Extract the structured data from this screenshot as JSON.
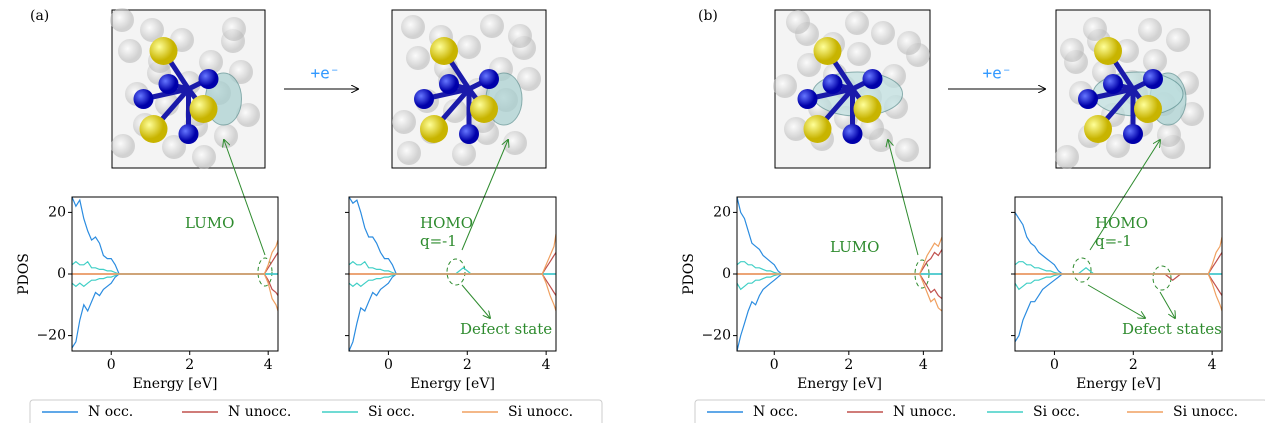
{
  "chart_data": [
    {
      "type": "line",
      "panel_label": "(a)",
      "xlabel": "Energy [eV]",
      "ylabel": "PDOS",
      "xlim": [
        -1,
        4.25
      ],
      "ylim": [
        -25,
        25
      ],
      "xticks": [
        0,
        2,
        4
      ],
      "yticks": [
        {
          "value": -20,
          "label": "−20"
        },
        0,
        20
      ],
      "legend": "below",
      "annotations": [
        "LUMO"
      ],
      "x": [
        -1,
        -0.9,
        -0.8,
        -0.7,
        -0.6,
        -0.5,
        -0.4,
        -0.3,
        -0.2,
        -0.1,
        0,
        0.1,
        0.2,
        1,
        2,
        3,
        3.8,
        3.9,
        4.0,
        4.1,
        4.2,
        4.25
      ],
      "series": [
        {
          "name": "N occ.",
          "color": "#2b8ce0",
          "values": [
            25,
            22,
            24,
            18,
            14,
            11,
            12,
            10,
            6,
            5,
            5,
            3,
            0,
            0,
            0,
            0,
            0,
            0,
            0,
            0,
            0,
            0
          ],
          "values_down": [
            -24,
            -22,
            -15,
            -10,
            -12,
            -9,
            -6,
            -7,
            -5,
            -4,
            -3,
            -1,
            0,
            0,
            0,
            0,
            0,
            0,
            0,
            0,
            0,
            0
          ]
        },
        {
          "name": "N unocc.",
          "color": "#c0504d",
          "values": [
            0,
            0,
            0,
            0,
            0,
            0,
            0,
            0,
            0,
            0,
            0,
            0,
            0,
            0,
            0,
            0,
            0,
            0,
            2,
            4,
            6,
            7
          ],
          "values_down": [
            0,
            0,
            0,
            0,
            0,
            0,
            0,
            0,
            0,
            0,
            0,
            0,
            0,
            0,
            0,
            0,
            0,
            0,
            -2,
            -5,
            -6,
            -7
          ]
        },
        {
          "name": "Si occ.",
          "color": "#40cfc6",
          "values": [
            3,
            4,
            3,
            3,
            4,
            2,
            2,
            1.5,
            1.5,
            1,
            1,
            0.5,
            0,
            0,
            0,
            0,
            0,
            0,
            0,
            0,
            0,
            0
          ],
          "values_down": [
            -3,
            -4,
            -3,
            -4,
            -3,
            -2,
            -2,
            -1.5,
            -1.5,
            -1,
            -1,
            -0.5,
            0,
            0,
            0,
            0,
            0,
            0,
            0,
            0,
            0,
            0
          ]
        },
        {
          "name": "Si unocc.",
          "color": "#f0a060",
          "values": [
            0,
            0,
            0,
            0,
            0,
            0,
            0,
            0,
            0,
            0,
            0,
            0,
            0,
            0,
            0,
            0,
            0,
            0,
            3,
            7,
            9,
            11
          ],
          "values_down": [
            0,
            0,
            0,
            0,
            0,
            0,
            0,
            0,
            0,
            0,
            0,
            0,
            0,
            0,
            0,
            0,
            0,
            0,
            -3,
            -8,
            -10,
            -12
          ]
        }
      ]
    },
    {
      "type": "line",
      "transition_label": "+e⁻",
      "xlabel": "Energy [eV]",
      "xlim": [
        -1,
        4.25
      ],
      "ylim": [
        -25,
        25
      ],
      "xticks": [
        0,
        2,
        4
      ],
      "yticks": [
        -20,
        0,
        20
      ],
      "ytick_labels": false,
      "annotations": [
        "HOMO",
        "q=-1",
        "Defect state"
      ],
      "x": [
        -1,
        -0.9,
        -0.8,
        -0.7,
        -0.6,
        -0.5,
        -0.4,
        -0.3,
        -0.2,
        -0.1,
        0,
        0.1,
        0.2,
        1,
        1.7,
        1.8,
        1.9,
        2.0,
        2.1,
        3,
        3.9,
        4.0,
        4.1,
        4.2,
        4.25
      ],
      "series": [
        {
          "name": "N occ.",
          "color": "#2b8ce0",
          "values": [
            25,
            23,
            24,
            20,
            15,
            12,
            12,
            10,
            7,
            5,
            5,
            3,
            0,
            0,
            0,
            0,
            0,
            0,
            0,
            0,
            0,
            0,
            0,
            0,
            0
          ],
          "values_down": [
            -25,
            -22,
            -16,
            -11,
            -12,
            -9,
            -6,
            -7,
            -5,
            -4,
            -3,
            -1,
            0,
            0,
            0,
            0,
            0,
            0,
            0,
            0,
            0,
            0,
            0,
            0,
            0
          ]
        },
        {
          "name": "N unocc.",
          "color": "#c0504d",
          "values": [
            0,
            0,
            0,
            0,
            0,
            0,
            0,
            0,
            0,
            0,
            0,
            0,
            0,
            0,
            0,
            0,
            0,
            0,
            0,
            0,
            0,
            2,
            4,
            6,
            7
          ],
          "values_down": [
            0,
            0,
            0,
            0,
            0,
            0,
            0,
            0,
            0,
            0,
            0,
            0,
            0,
            0,
            0,
            0,
            0,
            0,
            0,
            0,
            0,
            -2,
            -4,
            -6,
            -7
          ]
        },
        {
          "name": "Si occ.",
          "color": "#40cfc6",
          "values": [
            3,
            4,
            3,
            3,
            4,
            2,
            2,
            1.5,
            1.5,
            1,
            1,
            0.5,
            0,
            0,
            0,
            1,
            2,
            1,
            0,
            0,
            0,
            0,
            0,
            0,
            0
          ],
          "values_down": [
            -3,
            -4,
            -3,
            -4,
            -3,
            -2,
            -2,
            -1.5,
            -1.5,
            -1,
            -1,
            -0.5,
            0,
            0,
            0,
            0,
            0,
            0,
            0,
            0,
            0,
            0,
            0,
            0,
            0
          ]
        },
        {
          "name": "Si unocc.",
          "color": "#f0a060",
          "values": [
            0,
            0,
            0,
            0,
            0,
            0,
            0,
            0,
            0,
            0,
            0,
            0,
            0,
            0,
            0,
            0,
            0,
            0,
            0,
            0,
            0,
            3,
            6,
            9,
            13
          ],
          "values_down": [
            0,
            0,
            0,
            0,
            0,
            0,
            0,
            0,
            0,
            0,
            0,
            0,
            0,
            0,
            0,
            0,
            0,
            0,
            0,
            0,
            0,
            -3,
            -7,
            -10,
            -12
          ]
        }
      ]
    },
    {
      "type": "line",
      "panel_label": "(b)",
      "xlabel": "Energy [eV]",
      "ylabel": "PDOS",
      "xlim": [
        -1,
        4.5
      ],
      "ylim": [
        -25,
        25
      ],
      "xticks": [
        0,
        2,
        4
      ],
      "yticks": [
        {
          "value": -20,
          "label": "−20"
        },
        0,
        20
      ],
      "legend": "below",
      "annotations": [
        "LUMO"
      ],
      "x": [
        -1,
        -0.9,
        -0.8,
        -0.7,
        -0.6,
        -0.5,
        -0.4,
        -0.3,
        -0.2,
        -0.1,
        0,
        0.1,
        0.2,
        1,
        2,
        3,
        3.8,
        3.9,
        4.0,
        4.1,
        4.2,
        4.3,
        4.4,
        4.5
      ],
      "series": [
        {
          "name": "N occ.",
          "color": "#2b8ce0",
          "values": [
            25,
            20,
            18,
            14,
            10,
            9,
            8,
            6,
            5,
            4,
            3,
            1,
            0,
            0,
            0,
            0,
            0,
            0,
            0,
            0,
            0,
            0,
            0,
            0
          ],
          "values_down": [
            -25,
            -20,
            -16,
            -12,
            -9,
            -10,
            -7,
            -5,
            -4,
            -3,
            -2,
            -1,
            0,
            0,
            0,
            0,
            0,
            0,
            0,
            0,
            0,
            0,
            0,
            0
          ]
        },
        {
          "name": "N unocc.",
          "color": "#c0504d",
          "values": [
            0,
            0,
            0,
            0,
            0,
            0,
            0,
            0,
            0,
            0,
            0,
            0,
            0,
            0,
            0,
            0,
            0,
            0,
            2,
            4,
            5,
            7,
            6,
            8
          ],
          "values_down": [
            0,
            0,
            0,
            0,
            0,
            0,
            0,
            0,
            0,
            0,
            0,
            0,
            0,
            0,
            0,
            0,
            0,
            0,
            -2,
            -4,
            -6,
            -5,
            -7,
            -8
          ]
        },
        {
          "name": "Si occ.",
          "color": "#40cfc6",
          "values": [
            3,
            4,
            4,
            3,
            3,
            2,
            2,
            1.5,
            1,
            1,
            0.5,
            0.2,
            0,
            0,
            0,
            0,
            0,
            0,
            0,
            0,
            0,
            0,
            0,
            0
          ],
          "values_down": [
            -3,
            -5,
            -4,
            -3,
            -3,
            -2,
            -2,
            -1.5,
            -1,
            -1,
            -0.5,
            -0.2,
            0,
            0,
            0,
            0,
            0,
            0,
            0,
            0,
            0,
            0,
            0,
            0
          ]
        },
        {
          "name": "Si unocc.",
          "color": "#f0a060",
          "values": [
            0,
            0,
            0,
            0,
            0,
            0,
            0,
            0,
            0,
            0,
            0,
            0,
            0,
            0,
            0,
            0,
            0,
            0,
            3,
            6,
            8,
            10,
            9,
            12
          ],
          "values_down": [
            0,
            0,
            0,
            0,
            0,
            0,
            0,
            0,
            0,
            0,
            0,
            0,
            0,
            0,
            0,
            0,
            0,
            0,
            -3,
            -6,
            -9,
            -8,
            -11,
            -12
          ]
        }
      ]
    },
    {
      "type": "line",
      "transition_label": "+e⁻",
      "xlabel": "Energy [eV]",
      "xlim": [
        -1,
        4.25
      ],
      "ylim": [
        -25,
        25
      ],
      "xticks": [
        0,
        2,
        4
      ],
      "yticks": [
        -20,
        0,
        20
      ],
      "ytick_labels": false,
      "annotations": [
        "HOMO",
        "q=-1",
        "Defect states"
      ],
      "x": [
        -1,
        -0.9,
        -0.8,
        -0.7,
        -0.6,
        -0.5,
        -0.4,
        -0.3,
        -0.2,
        -0.1,
        0,
        0.1,
        0.2,
        0.6,
        0.7,
        0.8,
        0.9,
        1.0,
        2,
        2.8,
        2.9,
        3.0,
        3.1,
        3.2,
        3.9,
        4.0,
        4.1,
        4.2,
        4.25
      ],
      "series": [
        {
          "name": "N occ.",
          "color": "#2b8ce0",
          "values": [
            20,
            18,
            16,
            12,
            10,
            9,
            7,
            6,
            5,
            4,
            3,
            1,
            0,
            0,
            0,
            0,
            0,
            0,
            0,
            0,
            0,
            0,
            0,
            0,
            0,
            0,
            0,
            0,
            0
          ],
          "values_down": [
            -22,
            -20,
            -15,
            -12,
            -9,
            -9,
            -7,
            -5,
            -4,
            -3,
            -2,
            -1,
            0,
            0,
            0,
            0,
            0,
            0,
            0,
            0,
            0,
            0,
            0,
            0,
            0,
            0,
            0,
            0,
            0
          ]
        },
        {
          "name": "N unocc.",
          "color": "#c0504d",
          "values": [
            0,
            0,
            0,
            0,
            0,
            0,
            0,
            0,
            0,
            0,
            0,
            0,
            0,
            0,
            0,
            0,
            0,
            0,
            0,
            0,
            0,
            0,
            0,
            0,
            0,
            2,
            4,
            6,
            7
          ],
          "values_down": [
            0,
            0,
            0,
            0,
            0,
            0,
            0,
            0,
            0,
            0,
            0,
            0,
            0,
            0,
            0,
            0,
            0,
            0,
            0,
            0,
            -1,
            -2,
            -1,
            0,
            0,
            -2,
            -4,
            -6,
            -7
          ]
        },
        {
          "name": "Si occ.",
          "color": "#40cfc6",
          "values": [
            3,
            4,
            4,
            3,
            3,
            2,
            2,
            1.5,
            1,
            1,
            0.5,
            0.2,
            0,
            0,
            1,
            2,
            1,
            0,
            0,
            0,
            0,
            0,
            0,
            0,
            0,
            0,
            0,
            0,
            0
          ],
          "values_down": [
            -3,
            -5,
            -4,
            -3,
            -3,
            -2,
            -2,
            -1.5,
            -1,
            -1,
            -0.5,
            -0.2,
            0,
            0,
            0,
            0,
            0,
            0,
            0,
            0,
            0,
            0,
            0,
            0,
            0,
            0,
            0,
            0,
            0
          ]
        },
        {
          "name": "Si unocc.",
          "color": "#f0a060",
          "values": [
            0,
            0,
            0,
            0,
            0,
            0,
            0,
            0,
            0,
            0,
            0,
            0,
            0,
            0,
            0,
            0,
            0,
            0,
            0,
            0,
            0,
            0,
            0,
            0,
            0,
            3,
            7,
            9,
            12
          ],
          "values_down": [
            0,
            0,
            0,
            0,
            0,
            0,
            0,
            0,
            0,
            0,
            0,
            0,
            0,
            0,
            0,
            0,
            0,
            0,
            0,
            0,
            0,
            0,
            0,
            0,
            0,
            -3,
            -7,
            -10,
            -12
          ]
        }
      ]
    }
  ]
}
